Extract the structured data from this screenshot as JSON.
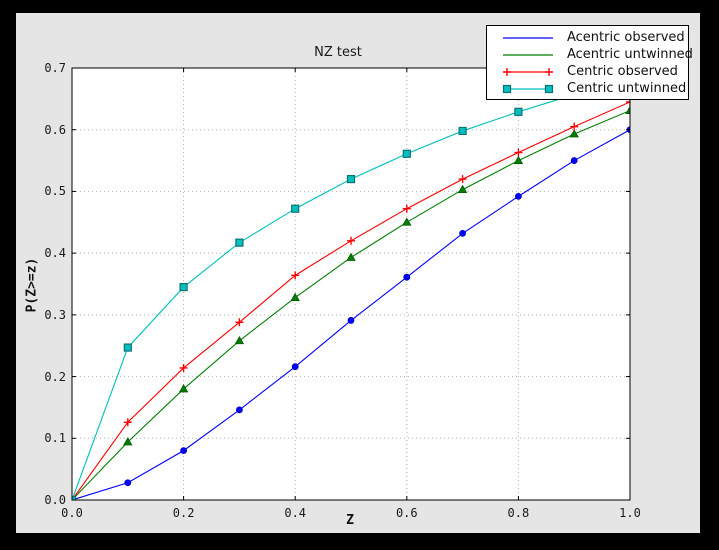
{
  "window": {
    "background": "#000000",
    "figure_background": "#e5e5e5",
    "axes_background": "#ffffff",
    "grid_color": "#b0b0b0"
  },
  "chart_data": {
    "type": "line",
    "title": "NZ test",
    "xlabel": "Z",
    "ylabel": "P(Z>=z)",
    "xlim": [
      0.0,
      1.0
    ],
    "ylim": [
      0.0,
      0.7
    ],
    "xtick_labels": [
      "0.0",
      "0.2",
      "0.4",
      "0.6",
      "0.8",
      "1.0"
    ],
    "ytick_labels": [
      "0.0",
      "0.1",
      "0.2",
      "0.3",
      "0.4",
      "0.5",
      "0.6",
      "0.7"
    ],
    "grid": true,
    "legend_position": "upper right",
    "x": [
      0.0,
      0.1,
      0.2,
      0.3,
      0.4,
      0.5,
      0.6,
      0.7,
      0.8,
      0.9,
      1.0
    ],
    "series": [
      {
        "name": "Acentric observed",
        "color": "#0000ff",
        "edge_color": "#0000bb",
        "marker": "circle",
        "legend_markers": false,
        "values": [
          0.0,
          0.028,
          0.08,
          0.146,
          0.216,
          0.291,
          0.361,
          0.432,
          0.492,
          0.55,
          0.6
        ]
      },
      {
        "name": "Acentric untwinned",
        "color": "#008000",
        "edge_color": "#005500",
        "marker": "triangle",
        "legend_markers": false,
        "values": [
          0.0,
          0.094,
          0.18,
          0.258,
          0.328,
          0.393,
          0.45,
          0.503,
          0.55,
          0.593,
          0.631
        ]
      },
      {
        "name": "Centric observed",
        "color": "#ff0000",
        "edge_color": "#ff0000",
        "marker": "plus",
        "legend_markers": true,
        "values": [
          0.0,
          0.126,
          0.214,
          0.288,
          0.364,
          0.42,
          0.472,
          0.52,
          0.563,
          0.605,
          0.645
        ]
      },
      {
        "name": "Centric untwinned",
        "color": "#00bfbf",
        "edge_color": "#0f7272",
        "marker": "square",
        "legend_markers": true,
        "values": [
          0.0,
          0.247,
          0.345,
          0.417,
          0.472,
          0.52,
          0.561,
          0.598,
          0.629,
          0.657,
          0.683
        ]
      }
    ]
  }
}
